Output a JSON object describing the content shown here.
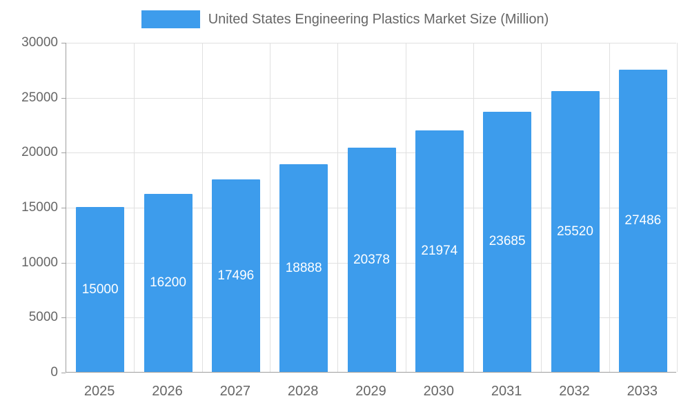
{
  "chart_data": {
    "type": "bar",
    "title": "United States Engineering Plastics Market Size (Million)",
    "categories": [
      "2025",
      "2026",
      "2027",
      "2028",
      "2029",
      "2030",
      "2031",
      "2032",
      "2033"
    ],
    "values": [
      15000,
      16200,
      17496,
      18888,
      20378,
      21974,
      23685,
      25520,
      27486
    ],
    "xlabel": "",
    "ylabel": "",
    "ylim": [
      0,
      30000
    ],
    "ytick_step": 5000,
    "ytick_labels": [
      "0",
      "5000",
      "10000",
      "15000",
      "20000",
      "25000",
      "30000"
    ],
    "grid": true,
    "legend_position": "top",
    "bar_labels_inside": true
  },
  "colors": {
    "bar": "#3d9cec",
    "grid": "#e0e0e0",
    "axis": "#9e9e9e",
    "text": "#666666",
    "background": "#ffffff",
    "bar_label": "#ffffff"
  }
}
